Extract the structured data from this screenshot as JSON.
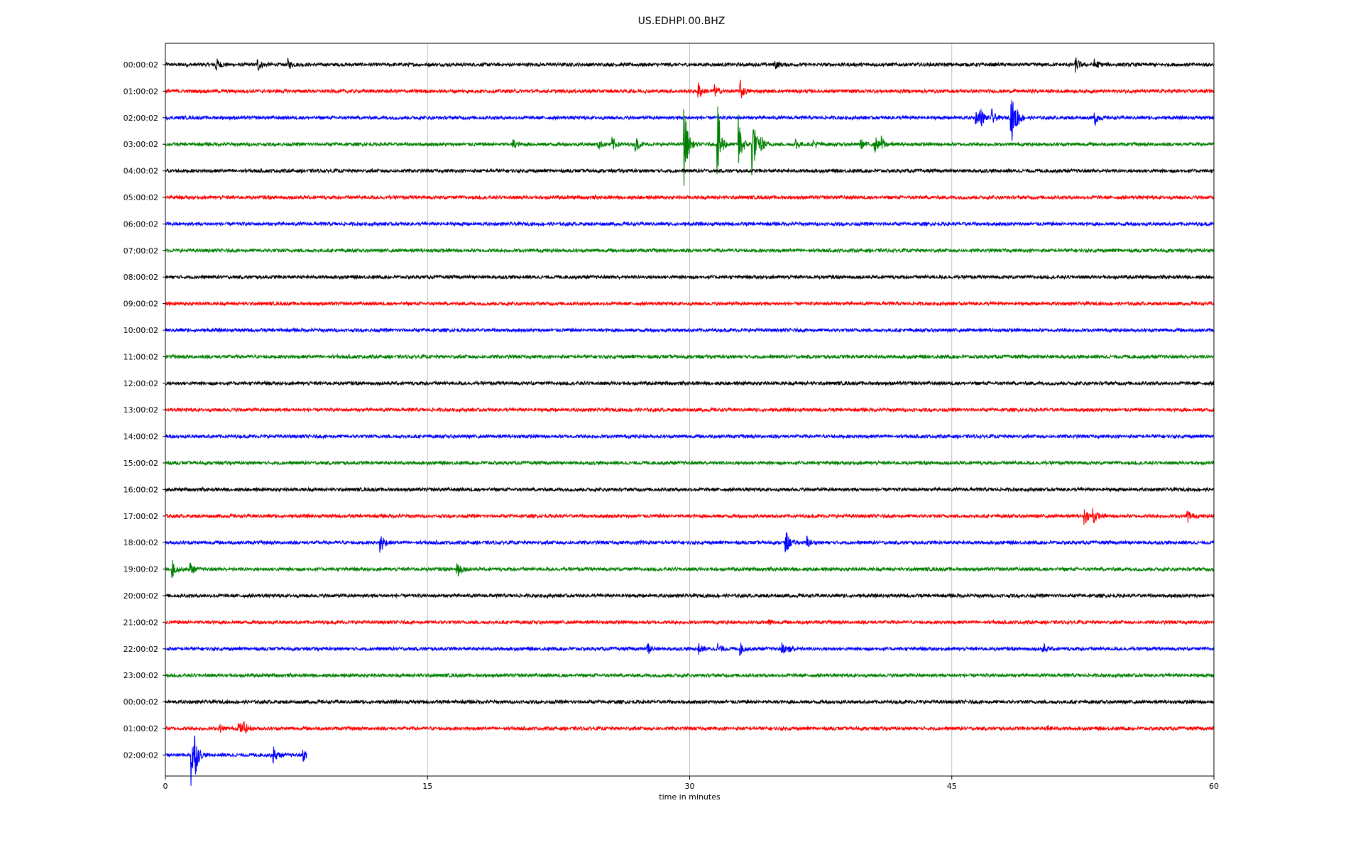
{
  "chart_data": {
    "type": "line",
    "title": "US.EDHPI.00.BHZ",
    "xlabel": "time in minutes",
    "ylabel": "",
    "xlim": [
      0,
      60
    ],
    "xticks": [
      0,
      15,
      30,
      45,
      60
    ],
    "grid": "vertical",
    "colors": [
      "#000000",
      "#ff0000",
      "#0000ff",
      "#008000"
    ],
    "noise_amplitude": 0.09,
    "series": [
      {
        "label": "00:00:02",
        "end": 60,
        "events": [
          [
            2.9,
            0.38
          ],
          [
            5.3,
            0.35
          ],
          [
            7.0,
            0.3
          ],
          [
            34.9,
            0.22
          ],
          [
            52.1,
            0.38
          ],
          [
            53.2,
            0.3
          ]
        ]
      },
      {
        "label": "01:00:02",
        "end": 60,
        "events": [
          [
            30.5,
            0.45
          ],
          [
            31.4,
            0.35
          ],
          [
            32.9,
            0.55
          ]
        ]
      },
      {
        "label": "02:00:02",
        "end": 60,
        "events": [
          [
            46.4,
            0.3
          ],
          [
            46.6,
            0.6
          ],
          [
            47.3,
            0.4
          ],
          [
            48.4,
            1.5
          ],
          [
            48.7,
            0.5
          ],
          [
            53.2,
            0.38
          ]
        ]
      },
      {
        "label": "03:00:02",
        "end": 60,
        "events": [
          [
            19.9,
            0.25
          ],
          [
            24.8,
            0.25
          ],
          [
            25.6,
            0.35
          ],
          [
            26.9,
            0.45
          ],
          [
            29.7,
            2.2
          ],
          [
            31.6,
            2.3
          ],
          [
            32.8,
            1.6
          ],
          [
            33.6,
            1.8
          ],
          [
            34.1,
            0.4
          ],
          [
            36.1,
            0.3
          ],
          [
            37.1,
            0.25
          ],
          [
            39.8,
            0.25
          ],
          [
            40.6,
            0.45
          ],
          [
            41.0,
            0.35
          ]
        ]
      },
      {
        "label": "04:00:02",
        "end": 60,
        "events": []
      },
      {
        "label": "05:00:02",
        "end": 60,
        "events": []
      },
      {
        "label": "06:00:02",
        "end": 60,
        "events": []
      },
      {
        "label": "07:00:02",
        "end": 60,
        "events": []
      },
      {
        "label": "08:00:02",
        "end": 60,
        "events": []
      },
      {
        "label": "09:00:02",
        "end": 60,
        "events": []
      },
      {
        "label": "10:00:02",
        "end": 60,
        "events": []
      },
      {
        "label": "11:00:02",
        "end": 60,
        "events": []
      },
      {
        "label": "12:00:02",
        "end": 60,
        "events": []
      },
      {
        "label": "13:00:02",
        "end": 60,
        "events": []
      },
      {
        "label": "14:00:02",
        "end": 60,
        "events": []
      },
      {
        "label": "15:00:02",
        "end": 60,
        "events": []
      },
      {
        "label": "16:00:02",
        "end": 60,
        "events": []
      },
      {
        "label": "17:00:02",
        "end": 60,
        "events": [
          [
            52.6,
            0.45
          ],
          [
            53.1,
            0.5
          ],
          [
            58.5,
            0.35
          ]
        ]
      },
      {
        "label": "18:00:02",
        "end": 60,
        "events": [
          [
            12.3,
            0.7
          ],
          [
            27.2,
            0.15
          ],
          [
            35.5,
            0.7
          ],
          [
            36.7,
            0.35
          ]
        ]
      },
      {
        "label": "19:00:02",
        "end": 60,
        "events": [
          [
            0.4,
            0.45
          ],
          [
            1.4,
            0.4
          ],
          [
            16.7,
            0.6
          ]
        ]
      },
      {
        "label": "20:00:02",
        "end": 60,
        "events": []
      },
      {
        "label": "21:00:02",
        "end": 60,
        "events": [
          [
            34.5,
            0.2
          ]
        ]
      },
      {
        "label": "22:00:02",
        "end": 60,
        "events": [
          [
            27.6,
            0.3
          ],
          [
            30.5,
            0.28
          ],
          [
            31.6,
            0.3
          ],
          [
            32.9,
            0.3
          ],
          [
            35.3,
            0.3
          ],
          [
            35.7,
            0.3
          ],
          [
            50.2,
            0.3
          ]
        ]
      },
      {
        "label": "23:00:02",
        "end": 60,
        "events": []
      },
      {
        "label": "00:00:02",
        "end": 60,
        "events": []
      },
      {
        "label": "01:00:02",
        "end": 60,
        "events": [
          [
            3.1,
            0.2
          ],
          [
            4.2,
            0.4
          ],
          [
            4.5,
            0.3
          ],
          [
            50.5,
            0.15
          ]
        ]
      },
      {
        "label": "02:00:02",
        "end": 8.1,
        "events": [
          [
            1.5,
            2.0
          ],
          [
            1.7,
            0.6
          ],
          [
            6.2,
            0.4
          ],
          [
            7.9,
            0.3
          ]
        ]
      }
    ]
  }
}
